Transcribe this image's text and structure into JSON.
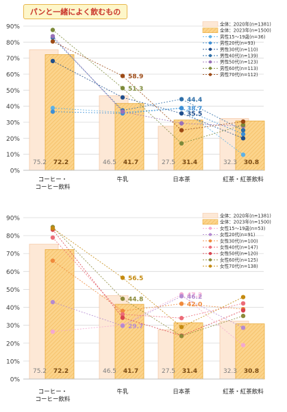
{
  "page_title": "パンと一緒によく飲むもの",
  "colors": {
    "bar2020_fill": "#fde8d6",
    "bar2020_stroke": "#f6c9a8",
    "bar2023_fill": "#fcd48c",
    "bar2023_stroke": "#e7aa3a",
    "grid": "#d9d9d9",
    "axis_text": "#404040",
    "bar_label": "#7f7f7f",
    "bar_label_bold": "#7a4a12"
  },
  "chart_data": [
    {
      "type": "bar",
      "categories": [
        "コーヒー・\nコーヒー飲料",
        "牛乳",
        "日本茶",
        "紅茶・紅茶飲料"
      ],
      "ylim": [
        0,
        90
      ],
      "ytick_labels": [
        "0%",
        "10%",
        "20%",
        "30%",
        "40%",
        "50%",
        "60%",
        "70%",
        "80%",
        "90%"
      ],
      "legend_position": "top-right",
      "series": [
        {
          "name": "全体：2020年(n=1381)",
          "kind": "bar",
          "values": [
            75.2,
            46.5,
            27.5,
            32.3
          ],
          "labels": [
            "75.2",
            "46.5",
            "27.5",
            "32.3"
          ],
          "color": "#fde8d6"
        },
        {
          "name": "全体：2023年(n=1500)",
          "kind": "bar",
          "values": [
            72.2,
            41.7,
            31.4,
            30.8
          ],
          "labels": [
            "72.2",
            "41.7",
            "31.4",
            "30.8"
          ],
          "color": "#fcd48c"
        },
        {
          "name": "男性15～19歳(n=36)",
          "kind": "line",
          "values": [
            38.9,
            36.1,
            38.9,
            9.7
          ],
          "color": "#5eb1e6"
        },
        {
          "name": "男性20代(n=93)",
          "kind": "line",
          "values": [
            36.6,
            35.5,
            38.7,
            22.6
          ],
          "color": "#3d8fd6"
        },
        {
          "name": "男性30代(n=110)",
          "kind": "line",
          "values": [
            68.2,
            45.5,
            35.5,
            20.0
          ],
          "color": "#1f4e8c"
        },
        {
          "name": "男性40代(n=139)",
          "kind": "line",
          "values": [
            82.7,
            37.4,
            44.4,
            25.0
          ],
          "color": "#2f6fa8"
        },
        {
          "name": "男性50代(n=123)",
          "kind": "line",
          "values": [
            83.7,
            36.6,
            29.3,
            27.6
          ],
          "color": "#9a72b8"
        },
        {
          "name": "男性60代(n=113)",
          "kind": "line",
          "values": [
            87.6,
            51.3,
            16.8,
            28.3
          ],
          "color": "#7d8a3a"
        },
        {
          "name": "男性70代(n=112)",
          "kind": "line",
          "values": [
            80.4,
            58.9,
            25.0,
            30.4
          ],
          "color": "#9c4a16"
        }
      ],
      "annotations": [
        {
          "category": "牛乳",
          "value": 58.9,
          "text": "58.9",
          "color": "#9c4a16"
        },
        {
          "category": "牛乳",
          "value": 51.3,
          "text": "51.3",
          "color": "#7d8a3a"
        },
        {
          "category": "日本茶",
          "value": 44.4,
          "text": "44.4",
          "color": "#2f6fa8"
        },
        {
          "category": "日本茶",
          "value": 38.7,
          "text": "38.7",
          "color": "#3d8fd6"
        },
        {
          "category": "日本茶",
          "value": 35.5,
          "text": "35.5",
          "color": "#1f4e8c"
        }
      ]
    },
    {
      "type": "bar",
      "categories": [
        "コーヒー・\nコーヒー飲料",
        "牛乳",
        "日本茶",
        "紅茶・紅茶飲料"
      ],
      "ylim": [
        0,
        90
      ],
      "ytick_labels": [
        "0%",
        "10%",
        "20%",
        "30%",
        "40%",
        "50%",
        "60%",
        "70%",
        "80%",
        "90%"
      ],
      "legend_position": "top-right",
      "series": [
        {
          "name": "全体：2020年(n=1381)",
          "kind": "bar",
          "values": [
            75.2,
            46.5,
            27.5,
            32.3
          ],
          "labels": [
            "75.2",
            "46.5",
            "27.5",
            "32.3"
          ],
          "color": "#fde8d6"
        },
        {
          "name": "全体：2023年(n=1500)",
          "kind": "bar",
          "values": [
            72.2,
            41.7,
            31.4,
            30.8
          ],
          "labels": [
            "72.2",
            "41.7",
            "31.4",
            "30.8"
          ],
          "color": "#fcd48c"
        },
        {
          "name": "女性15～19歳(n=53)",
          "kind": "line",
          "values": [
            26.4,
            30.2,
            47.2,
            18.9
          ],
          "color": "#f4a8d0"
        },
        {
          "name": "女性20代(n=91)",
          "kind": "line",
          "values": [
            42.9,
            29.7,
            46.2,
            28.6
          ],
          "color": "#b48ad0"
        },
        {
          "name": "女性30代(n=100)",
          "kind": "line",
          "values": [
            66.0,
            38.0,
            42.0,
            39.0
          ],
          "color": "#f08a3c"
        },
        {
          "name": "女性40代(n=147)",
          "kind": "line",
          "values": [
            78.9,
            36.1,
            34.0,
            42.2
          ],
          "color": "#ec6c78"
        },
        {
          "name": "女性50代(n=120)",
          "kind": "line",
          "values": [
            83.3,
            34.2,
            24.2,
            38.3
          ],
          "color": "#d9434f"
        },
        {
          "name": "女性60代(n=125)",
          "kind": "line",
          "values": [
            84.8,
            44.8,
            24.0,
            35.2
          ],
          "color": "#8c8a3a"
        },
        {
          "name": "女性70代(n=138)",
          "kind": "line",
          "values": [
            84.1,
            56.5,
            29.0,
            45.7
          ],
          "color": "#c48a10"
        }
      ],
      "annotations": [
        {
          "category": "牛乳",
          "value": 56.5,
          "text": "56.5",
          "color": "#c48a10"
        },
        {
          "category": "牛乳",
          "value": 44.8,
          "text": "44.8",
          "color": "#8c8a3a"
        },
        {
          "category": "牛乳",
          "value": 29.7,
          "text": "29.7",
          "color": "#b48ad0"
        },
        {
          "category": "日本茶",
          "value": 47.2,
          "text": "47.2",
          "color": "#f4a8d0"
        },
        {
          "category": "日本茶",
          "value": 46.2,
          "text": "46.2",
          "color": "#b48ad0"
        },
        {
          "category": "日本茶",
          "value": 42.0,
          "text": "42.0",
          "color": "#f08a3c"
        }
      ]
    }
  ]
}
